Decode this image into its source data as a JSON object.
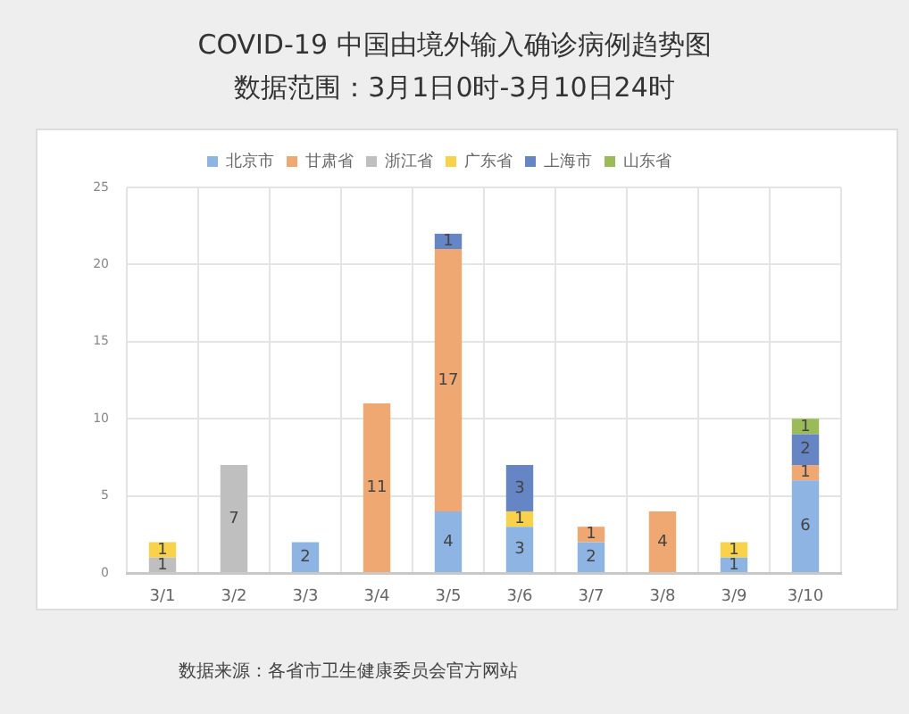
{
  "chart_data": {
    "type": "bar",
    "title": "COVID-19 中国由境外输入确诊病例趋势图",
    "subtitle": "数据范围：3月1日0时-3月10日24时",
    "categories": [
      "3/1",
      "3/2",
      "3/3",
      "3/4",
      "3/5",
      "3/6",
      "3/7",
      "3/8",
      "3/9",
      "3/10"
    ],
    "series": [
      {
        "name": "北京市",
        "color": "#8db4e2",
        "values": [
          null,
          null,
          2,
          null,
          4,
          3,
          2,
          null,
          1,
          6
        ]
      },
      {
        "name": "甘肃省",
        "color": "#f0a872",
        "values": [
          null,
          null,
          null,
          11,
          17,
          null,
          1,
          4,
          null,
          1
        ]
      },
      {
        "name": "浙江省",
        "color": "#bfbfbf",
        "values": [
          1,
          7,
          null,
          null,
          null,
          null,
          null,
          null,
          null,
          null
        ]
      },
      {
        "name": "广东省",
        "color": "#f7d24a",
        "values": [
          1,
          null,
          null,
          null,
          null,
          1,
          null,
          null,
          1,
          null
        ]
      },
      {
        "name": "上海市",
        "color": "#6585c5",
        "values": [
          null,
          null,
          null,
          null,
          1,
          3,
          null,
          null,
          null,
          2
        ]
      },
      {
        "name": "山东省",
        "color": "#9bbb59",
        "values": [
          null,
          null,
          null,
          null,
          null,
          null,
          null,
          null,
          null,
          1
        ]
      }
    ],
    "stacked": true,
    "ylim": [
      0,
      25
    ],
    "yticks": [
      0,
      5,
      10,
      15,
      20,
      25
    ],
    "grid": true,
    "legend": "top",
    "data_labels": true,
    "annotations": [
      "数据来源：各省市卫生健康委员会官方网站"
    ]
  }
}
